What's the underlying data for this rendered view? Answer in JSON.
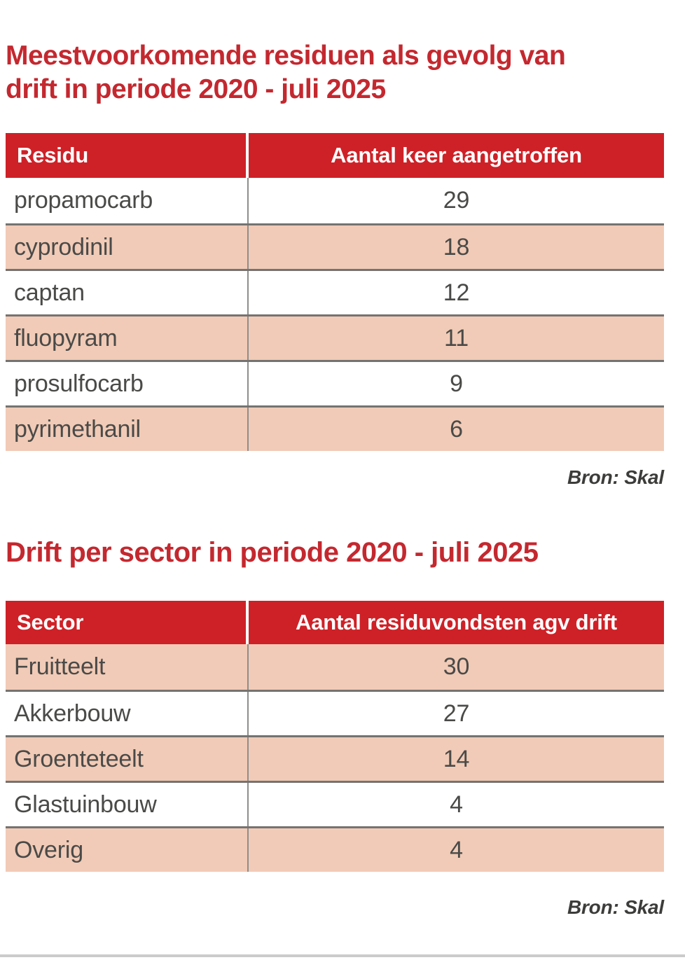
{
  "colors": {
    "title_red": "#c4282f",
    "header_red": "#ce2127",
    "row_peach": "#f1cbb7",
    "row_white": "#ffffff",
    "row_border_gray": "#757371",
    "column_divider_gray": "#8e8e8c",
    "cell_text": "#4a4a48",
    "source_text": "#3c3c3a",
    "bottom_bar_gray": "#cbcbcb"
  },
  "section1": {
    "title_line1": "Meestvoorkomende residuen als gevolg van",
    "title_line2": "drift in periode 2020 - juli 2025",
    "table": {
      "columns": [
        "Residu",
        "Aantal keer aangetroffen"
      ],
      "rows": [
        [
          "propamocarb",
          "29"
        ],
        [
          "cyprodinil",
          "18"
        ],
        [
          "captan",
          "12"
        ],
        [
          "fluopyram",
          "11"
        ],
        [
          "prosulfocarb",
          "9"
        ],
        [
          "pyrimethanil",
          "6"
        ]
      ]
    },
    "source": "Bron: Skal"
  },
  "section2": {
    "title": "Drift per sector in periode 2020 - juli 2025",
    "table": {
      "columns": [
        "Sector",
        "Aantal residuvondsten agv drift"
      ],
      "rows": [
        [
          "Fruitteelt",
          "30"
        ],
        [
          "Akkerbouw",
          "27"
        ],
        [
          "Groenteteelt",
          "14"
        ],
        [
          "Glastuinbouw",
          "4"
        ],
        [
          "Overig",
          "4"
        ]
      ]
    },
    "source": "Bron: Skal"
  },
  "chart_data": [
    {
      "type": "table",
      "title": "Meestvoorkomende residuen als gevolg van drift in periode 2020 - juli 2025",
      "columns": [
        "Residu",
        "Aantal keer aangetroffen"
      ],
      "categories": [
        "propamocarb",
        "cyprodinil",
        "captan",
        "fluopyram",
        "prosulfocarb",
        "pyrimethanil"
      ],
      "values": [
        29,
        18,
        12,
        11,
        9,
        6
      ],
      "source": "Bron: Skal"
    },
    {
      "type": "table",
      "title": "Drift per sector in periode 2020 - juli 2025",
      "columns": [
        "Sector",
        "Aantal residuvondsten agv drift"
      ],
      "categories": [
        "Fruitteelt",
        "Akkerbouw",
        "Groenteteelt",
        "Glastuinbouw",
        "Overig"
      ],
      "values": [
        30,
        27,
        14,
        4,
        4
      ],
      "source": "Bron: Skal"
    }
  ]
}
